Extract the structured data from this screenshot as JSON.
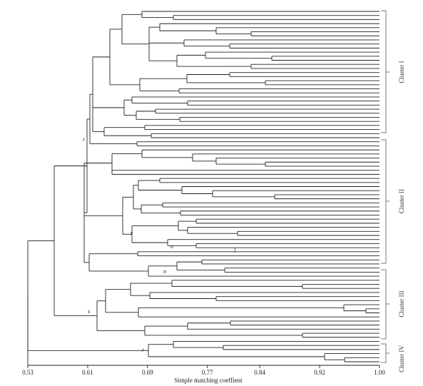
{
  "figure": {
    "x_axis": {
      "title": "Simple matching coeffient",
      "min": 0.53,
      "max": 1.0,
      "ticks": [
        "0.53",
        "0.61",
        "0.69",
        "0.77",
        "0.84",
        "0.92",
        "1.00"
      ]
    },
    "clusters": [
      {
        "label": "Cluster I"
      },
      {
        "label": "Cluster II"
      },
      {
        "label": "Cluster III"
      },
      {
        "label": "Cluster IV"
      }
    ],
    "node_letters": [
      "r",
      "r",
      "n",
      "l",
      "n",
      "s",
      "r"
    ]
  },
  "style": {
    "line_color": "#222222",
    "bracket_color": "#777777"
  }
}
